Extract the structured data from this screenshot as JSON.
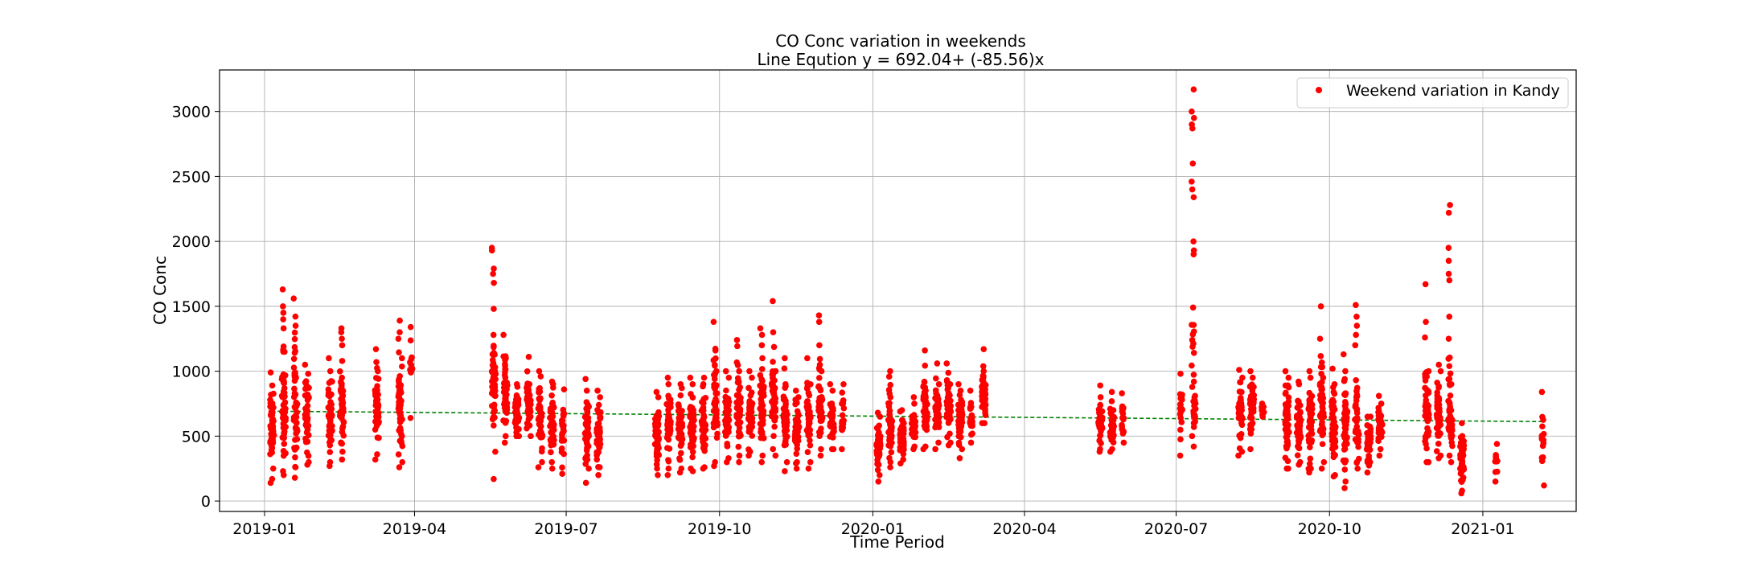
{
  "chart_data": {
    "type": "scatter",
    "title": "CO Conc variation in weekends",
    "subtitle": "Line Eqution y = 692.04+ (-85.56)x",
    "xlabel": "Time Period",
    "ylabel": "CO Conc",
    "xlim": [
      "2018-12-05",
      "2021-02-26"
    ],
    "ylim": [
      -80,
      3320
    ],
    "x_ticks": [
      "2019-01",
      "2019-04",
      "2019-07",
      "2019-10",
      "2020-01",
      "2020-04",
      "2020-07",
      "2020-10",
      "2021-01"
    ],
    "y_ticks": [
      0,
      500,
      1000,
      1500,
      2000,
      2500,
      3000
    ],
    "grid": true,
    "legend_position": "top-right",
    "colors": {
      "scatter": "#ff0000",
      "trend": "#008000",
      "grid": "#b0b0b0"
    },
    "series": [
      {
        "name": "Weekend variation in Kandy",
        "kind": "scatter",
        "clusters": [
          {
            "date": "2019-01-05",
            "min": 140,
            "max": 990,
            "n": 26
          },
          {
            "date": "2019-01-06",
            "min": 170,
            "max": 890,
            "n": 24
          },
          {
            "date": "2019-01-12",
            "min": 230,
            "max": 1630,
            "n": 30,
            "highs": [
              1330,
              1400,
              1450,
              1500,
              1630
            ]
          },
          {
            "date": "2019-01-13",
            "min": 200,
            "max": 1150,
            "n": 26
          },
          {
            "date": "2019-01-19",
            "min": 180,
            "max": 1560,
            "n": 28,
            "highs": [
              1560
            ]
          },
          {
            "date": "2019-01-20",
            "min": 260,
            "max": 950,
            "n": 24
          },
          {
            "date": "2019-01-26",
            "min": 280,
            "max": 1050,
            "n": 24
          },
          {
            "date": "2019-01-27",
            "min": 300,
            "max": 980,
            "n": 22
          },
          {
            "date": "2019-02-09",
            "min": 270,
            "max": 1100,
            "n": 26
          },
          {
            "date": "2019-02-10",
            "min": 300,
            "max": 1000,
            "n": 22
          },
          {
            "date": "2019-02-16",
            "min": 320,
            "max": 1330,
            "n": 28,
            "highs": [
              1200,
              1250,
              1300,
              1330
            ]
          },
          {
            "date": "2019-02-17",
            "min": 380,
            "max": 950,
            "n": 22
          },
          {
            "date": "2019-03-09",
            "min": 320,
            "max": 1170,
            "n": 26,
            "highs": [
              1170
            ]
          },
          {
            "date": "2019-03-10",
            "min": 360,
            "max": 1000,
            "n": 22
          },
          {
            "date": "2019-03-23",
            "min": 260,
            "max": 1390,
            "n": 28,
            "highs": [
              1250,
              1300,
              1390
            ]
          },
          {
            "date": "2019-03-24",
            "min": 300,
            "max": 1100,
            "n": 22
          },
          {
            "date": "2019-03-30",
            "min": 640,
            "max": 1340,
            "n": 12,
            "highs": [
              1340
            ]
          },
          {
            "date": "2019-05-18",
            "min": 170,
            "max": 1950,
            "n": 30,
            "highs": [
              1480,
              1680,
              1750,
              1790,
              1930,
              1950
            ]
          },
          {
            "date": "2019-05-19",
            "min": 380,
            "max": 1280,
            "n": 26
          },
          {
            "date": "2019-05-25",
            "min": 450,
            "max": 1280,
            "n": 30
          },
          {
            "date": "2019-05-26",
            "min": 500,
            "max": 1100,
            "n": 26
          },
          {
            "date": "2019-06-01",
            "min": 500,
            "max": 900,
            "n": 24
          },
          {
            "date": "2019-06-02",
            "min": 500,
            "max": 880,
            "n": 22
          },
          {
            "date": "2019-06-08",
            "min": 560,
            "max": 1110,
            "n": 24
          },
          {
            "date": "2019-06-09",
            "min": 500,
            "max": 900,
            "n": 22
          },
          {
            "date": "2019-06-15",
            "min": 260,
            "max": 1000,
            "n": 26
          },
          {
            "date": "2019-06-16",
            "min": 300,
            "max": 960,
            "n": 24
          },
          {
            "date": "2019-06-22",
            "min": 250,
            "max": 920,
            "n": 24
          },
          {
            "date": "2019-06-23",
            "min": 300,
            "max": 900,
            "n": 22
          },
          {
            "date": "2019-06-29",
            "min": 210,
            "max": 860,
            "n": 24
          },
          {
            "date": "2019-07-13",
            "min": 140,
            "max": 940,
            "n": 26
          },
          {
            "date": "2019-07-14",
            "min": 250,
            "max": 850,
            "n": 22
          },
          {
            "date": "2019-07-20",
            "min": 200,
            "max": 850,
            "n": 24
          },
          {
            "date": "2019-07-21",
            "min": 260,
            "max": 800,
            "n": 20
          },
          {
            "date": "2019-08-24",
            "min": 250,
            "max": 840,
            "n": 26
          },
          {
            "date": "2019-08-25",
            "min": 200,
            "max": 800,
            "n": 24
          },
          {
            "date": "2019-08-31",
            "min": 200,
            "max": 950,
            "n": 26
          },
          {
            "date": "2019-09-01",
            "min": 250,
            "max": 900,
            "n": 24
          },
          {
            "date": "2019-09-07",
            "min": 220,
            "max": 900,
            "n": 26
          },
          {
            "date": "2019-09-08",
            "min": 250,
            "max": 870,
            "n": 24
          },
          {
            "date": "2019-09-14",
            "min": 250,
            "max": 950,
            "n": 26
          },
          {
            "date": "2019-09-15",
            "min": 230,
            "max": 900,
            "n": 24
          },
          {
            "date": "2019-09-21",
            "min": 250,
            "max": 950,
            "n": 26
          },
          {
            "date": "2019-09-22",
            "min": 260,
            "max": 900,
            "n": 24
          },
          {
            "date": "2019-09-28",
            "min": 270,
            "max": 1380,
            "n": 26,
            "highs": [
              1380
            ]
          },
          {
            "date": "2019-09-29",
            "min": 300,
            "max": 1000,
            "n": 24
          },
          {
            "date": "2019-10-05",
            "min": 300,
            "max": 1000,
            "n": 26
          },
          {
            "date": "2019-10-06",
            "min": 330,
            "max": 950,
            "n": 24
          },
          {
            "date": "2019-10-12",
            "min": 300,
            "max": 1240,
            "n": 26,
            "highs": [
              1240
            ]
          },
          {
            "date": "2019-10-13",
            "min": 350,
            "max": 1000,
            "n": 24
          },
          {
            "date": "2019-10-19",
            "min": 350,
            "max": 1000,
            "n": 26
          },
          {
            "date": "2019-10-20",
            "min": 380,
            "max": 950,
            "n": 24
          },
          {
            "date": "2019-10-26",
            "min": 300,
            "max": 1330,
            "n": 28,
            "highs": [
              1200,
              1280,
              1330
            ]
          },
          {
            "date": "2019-10-27",
            "min": 350,
            "max": 1100,
            "n": 24
          },
          {
            "date": "2019-11-02",
            "min": 400,
            "max": 1540,
            "n": 28,
            "highs": [
              1300,
              1540
            ]
          },
          {
            "date": "2019-11-03",
            "min": 350,
            "max": 1000,
            "n": 24
          },
          {
            "date": "2019-11-09",
            "min": 230,
            "max": 1100,
            "n": 26
          },
          {
            "date": "2019-11-10",
            "min": 300,
            "max": 900,
            "n": 22
          },
          {
            "date": "2019-11-16",
            "min": 250,
            "max": 850,
            "n": 24
          },
          {
            "date": "2019-11-17",
            "min": 300,
            "max": 800,
            "n": 22
          },
          {
            "date": "2019-11-23",
            "min": 250,
            "max": 1100,
            "n": 26
          },
          {
            "date": "2019-11-24",
            "min": 300,
            "max": 900,
            "n": 22
          },
          {
            "date": "2019-11-30",
            "min": 350,
            "max": 1430,
            "n": 28,
            "highs": [
              1200,
              1380,
              1430
            ]
          },
          {
            "date": "2019-12-01",
            "min": 400,
            "max": 1000,
            "n": 24
          },
          {
            "date": "2019-12-07",
            "min": 400,
            "max": 900,
            "n": 24
          },
          {
            "date": "2019-12-08",
            "min": 400,
            "max": 850,
            "n": 22
          },
          {
            "date": "2019-12-14",
            "min": 400,
            "max": 900,
            "n": 22
          },
          {
            "date": "2020-01-04",
            "min": 150,
            "max": 680,
            "n": 28
          },
          {
            "date": "2020-01-05",
            "min": 200,
            "max": 650,
            "n": 24
          },
          {
            "date": "2020-01-11",
            "min": 260,
            "max": 1000,
            "n": 28
          },
          {
            "date": "2020-01-12",
            "min": 300,
            "max": 800,
            "n": 24
          },
          {
            "date": "2020-01-18",
            "min": 290,
            "max": 690,
            "n": 26
          },
          {
            "date": "2020-01-19",
            "min": 320,
            "max": 700,
            "n": 22
          },
          {
            "date": "2020-01-25",
            "min": 400,
            "max": 800,
            "n": 26
          },
          {
            "date": "2020-01-26",
            "min": 420,
            "max": 750,
            "n": 22
          },
          {
            "date": "2020-02-01",
            "min": 400,
            "max": 1160,
            "n": 26,
            "highs": [
              1160
            ]
          },
          {
            "date": "2020-02-02",
            "min": 420,
            "max": 850,
            "n": 22
          },
          {
            "date": "2020-02-08",
            "min": 400,
            "max": 1060,
            "n": 26
          },
          {
            "date": "2020-02-09",
            "min": 450,
            "max": 900,
            "n": 22
          },
          {
            "date": "2020-02-15",
            "min": 430,
            "max": 1060,
            "n": 26
          },
          {
            "date": "2020-02-16",
            "min": 450,
            "max": 900,
            "n": 22
          },
          {
            "date": "2020-02-22",
            "min": 330,
            "max": 900,
            "n": 26
          },
          {
            "date": "2020-02-23",
            "min": 400,
            "max": 850,
            "n": 22
          },
          {
            "date": "2020-02-29",
            "min": 450,
            "max": 850,
            "n": 22
          },
          {
            "date": "2020-03-07",
            "min": 600,
            "max": 1170,
            "n": 26,
            "highs": [
              1170
            ]
          },
          {
            "date": "2020-03-08",
            "min": 600,
            "max": 1000,
            "n": 22
          },
          {
            "date": "2020-05-16",
            "min": 380,
            "max": 890,
            "n": 20
          },
          {
            "date": "2020-05-17",
            "min": 400,
            "max": 800,
            "n": 16
          },
          {
            "date": "2020-05-23",
            "min": 380,
            "max": 840,
            "n": 20
          },
          {
            "date": "2020-05-24",
            "min": 400,
            "max": 700,
            "n": 16
          },
          {
            "date": "2020-05-30",
            "min": 450,
            "max": 830,
            "n": 18
          },
          {
            "date": "2020-07-04",
            "min": 350,
            "max": 980,
            "n": 20
          },
          {
            "date": "2020-07-11",
            "min": 500,
            "max": 3170,
            "n": 26,
            "highs": [
              1900,
              1930,
              2000,
              2340,
              2400,
              2460,
              2600,
              2870,
              2900,
              2950,
              3000,
              3170
            ]
          },
          {
            "date": "2020-07-12",
            "min": 420,
            "max": 920,
            "n": 20
          },
          {
            "date": "2020-08-08",
            "min": 350,
            "max": 1010,
            "n": 26
          },
          {
            "date": "2020-08-09",
            "min": 380,
            "max": 950,
            "n": 22
          },
          {
            "date": "2020-08-15",
            "min": 400,
            "max": 1000,
            "n": 26
          },
          {
            "date": "2020-08-16",
            "min": 600,
            "max": 950,
            "n": 20
          },
          {
            "date": "2020-08-22",
            "min": 650,
            "max": 750,
            "n": 10
          },
          {
            "date": "2020-09-05",
            "min": 250,
            "max": 1000,
            "n": 28
          },
          {
            "date": "2020-09-06",
            "min": 250,
            "max": 950,
            "n": 24
          },
          {
            "date": "2020-09-12",
            "min": 280,
            "max": 920,
            "n": 26
          },
          {
            "date": "2020-09-13",
            "min": 300,
            "max": 900,
            "n": 24
          },
          {
            "date": "2020-09-19",
            "min": 220,
            "max": 1000,
            "n": 28
          },
          {
            "date": "2020-09-20",
            "min": 250,
            "max": 950,
            "n": 24
          },
          {
            "date": "2020-09-26",
            "min": 250,
            "max": 1500,
            "n": 28,
            "highs": [
              1250,
              1500
            ]
          },
          {
            "date": "2020-09-27",
            "min": 300,
            "max": 950,
            "n": 24
          },
          {
            "date": "2020-10-03",
            "min": 190,
            "max": 1020,
            "n": 28
          },
          {
            "date": "2020-10-04",
            "min": 200,
            "max": 900,
            "n": 24
          },
          {
            "date": "2020-10-10",
            "min": 100,
            "max": 1130,
            "n": 28
          },
          {
            "date": "2020-10-11",
            "min": 150,
            "max": 1000,
            "n": 24
          },
          {
            "date": "2020-10-17",
            "min": 300,
            "max": 1510,
            "n": 30,
            "highs": [
              1200,
              1280,
              1350,
              1420,
              1510
            ]
          },
          {
            "date": "2020-10-18",
            "min": 250,
            "max": 700,
            "n": 22
          },
          {
            "date": "2020-10-24",
            "min": 220,
            "max": 650,
            "n": 24
          },
          {
            "date": "2020-10-25",
            "min": 300,
            "max": 650,
            "n": 22
          },
          {
            "date": "2020-10-31",
            "min": 350,
            "max": 810,
            "n": 24
          },
          {
            "date": "2020-11-01",
            "min": 400,
            "max": 750,
            "n": 20
          },
          {
            "date": "2020-11-28",
            "min": 300,
            "max": 1670,
            "n": 28,
            "highs": [
              1260,
              1380,
              1670
            ]
          },
          {
            "date": "2020-11-29",
            "min": 300,
            "max": 1000,
            "n": 24
          },
          {
            "date": "2020-12-05",
            "min": 330,
            "max": 1050,
            "n": 26
          },
          {
            "date": "2020-12-06",
            "min": 350,
            "max": 1000,
            "n": 24
          },
          {
            "date": "2020-12-12",
            "min": 350,
            "max": 2280,
            "n": 30,
            "highs": [
              1250,
              1420,
              1700,
              1750,
              1850,
              1950,
              2220,
              2280
            ]
          },
          {
            "date": "2020-12-13",
            "min": 300,
            "max": 900,
            "n": 24
          },
          {
            "date": "2020-12-19",
            "min": 60,
            "max": 600,
            "n": 28
          },
          {
            "date": "2020-12-20",
            "min": 80,
            "max": 500,
            "n": 24
          },
          {
            "date": "2021-01-09",
            "min": 150,
            "max": 440,
            "n": 10
          },
          {
            "date": "2021-02-06",
            "min": 120,
            "max": 840,
            "n": 14
          }
        ]
      },
      {
        "kind": "line",
        "x": [
          "2019-01-05",
          "2021-02-06"
        ],
        "y": [
          692,
          612
        ]
      }
    ]
  }
}
